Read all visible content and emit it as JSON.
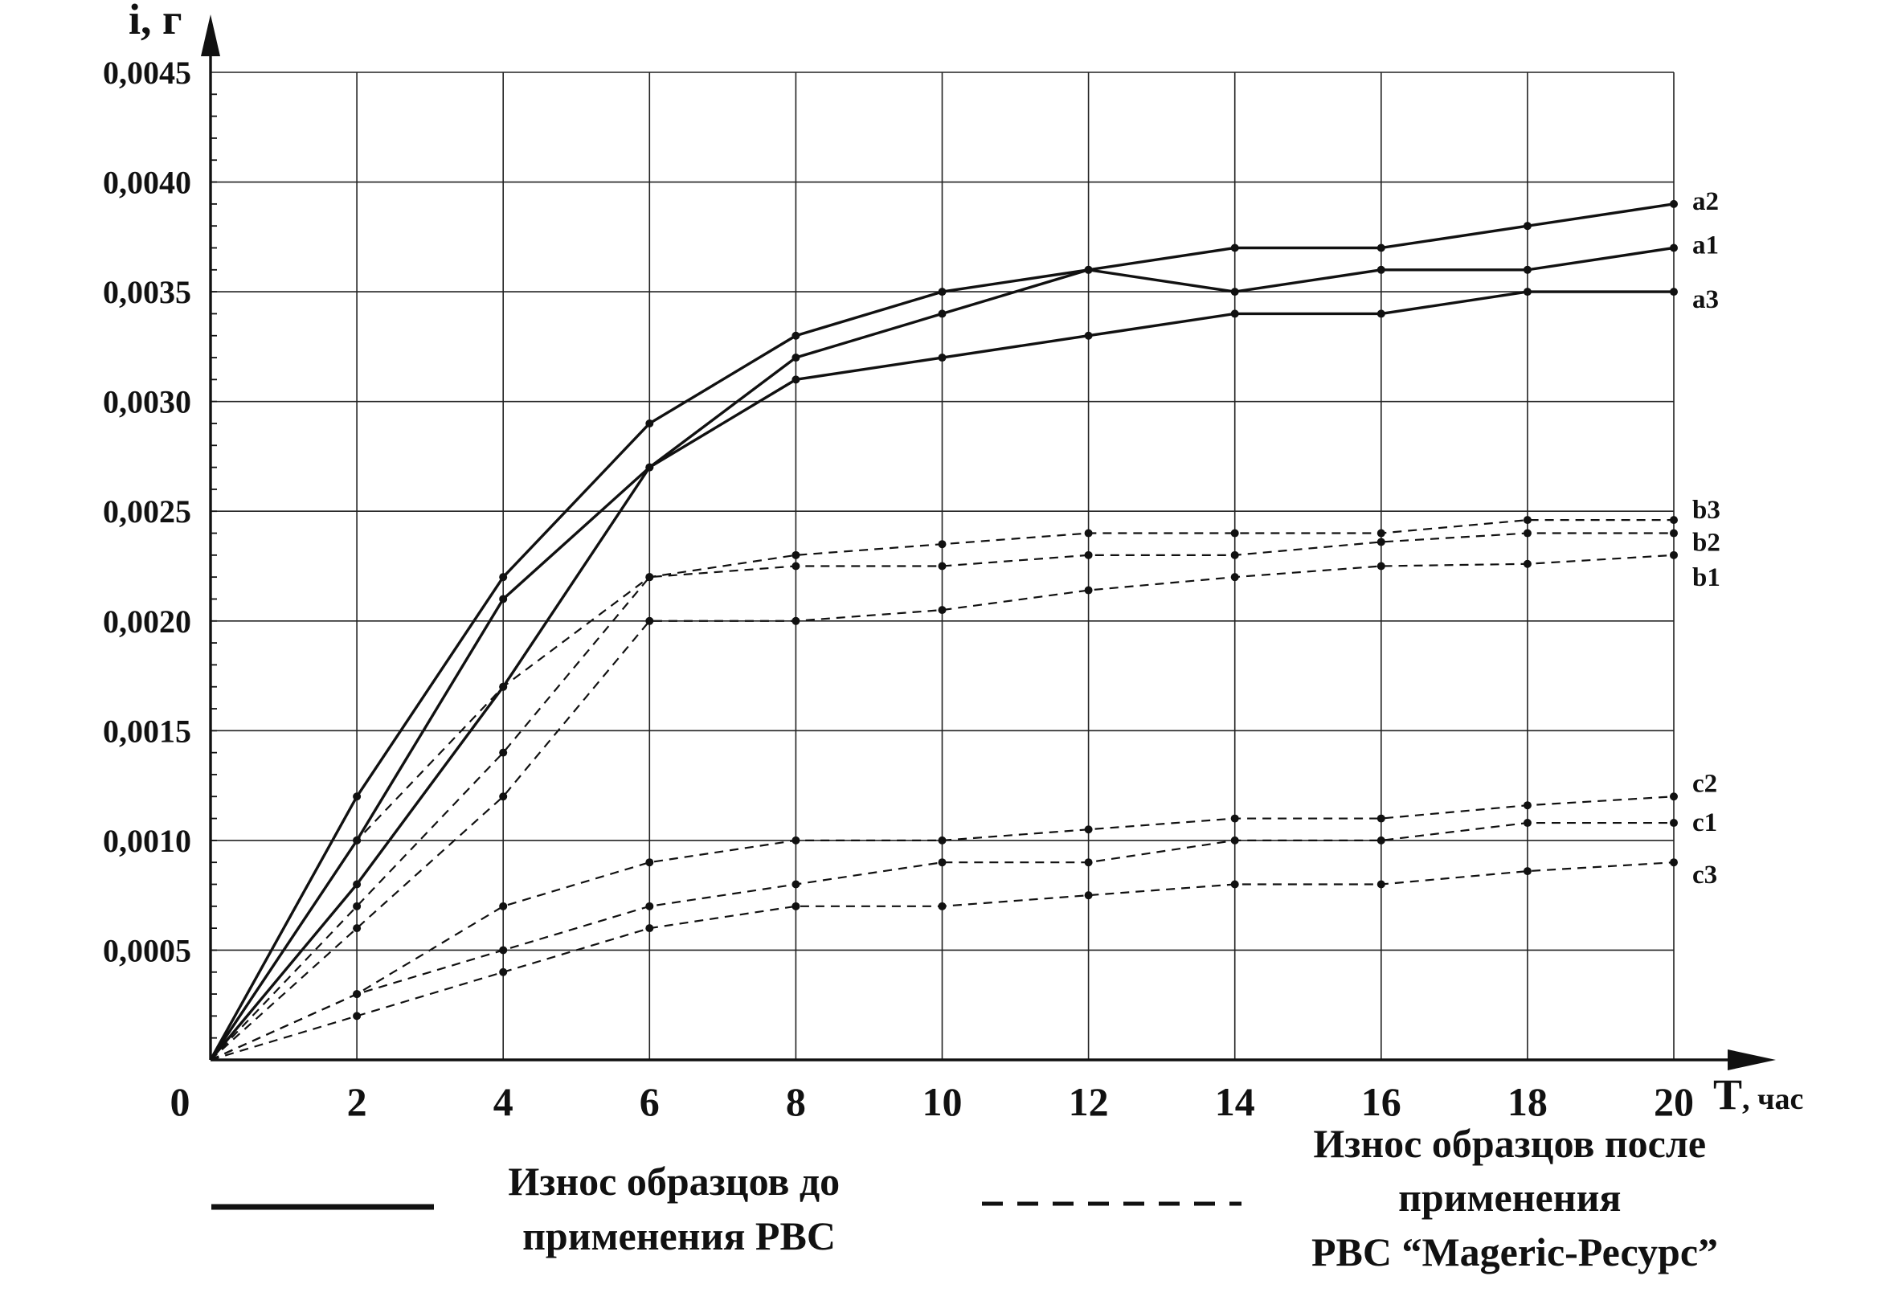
{
  "chart_data": {
    "type": "line",
    "ylabel": "i, г",
    "xlabel": "T",
    "xlabel_unit": ", час",
    "x_origin_label": "0",
    "x": [
      0,
      2,
      4,
      6,
      8,
      10,
      12,
      14,
      16,
      18,
      20
    ],
    "x_tick_labels": [
      "2",
      "4",
      "6",
      "8",
      "10",
      "12",
      "14",
      "16",
      "18",
      "20"
    ],
    "y_tick_labels": [
      "0,0005",
      "0,0010",
      "0,0015",
      "0,0020",
      "0,0025",
      "0,0030",
      "0,0035",
      "0,0040",
      "0,0045"
    ],
    "y_ticks": [
      0.0005,
      0.001,
      0.0015,
      0.002,
      0.0025,
      0.003,
      0.0035,
      0.004,
      0.0045
    ],
    "xlim": [
      0,
      20
    ],
    "ylim": [
      0,
      0.0045
    ],
    "grid": true,
    "series": [
      {
        "name": "a2",
        "style": "solid",
        "values": [
          0,
          0.0012,
          0.0022,
          0.0029,
          0.0033,
          0.0035,
          0.0036,
          0.0037,
          0.0037,
          0.0038,
          0.0039
        ]
      },
      {
        "name": "a1",
        "style": "solid",
        "values": [
          0,
          0.001,
          0.0021,
          0.0027,
          0.0032,
          0.0034,
          0.0036,
          0.0035,
          0.0036,
          0.0036,
          0.0037
        ]
      },
      {
        "name": "a3",
        "style": "solid",
        "values": [
          0,
          0.0008,
          0.0017,
          0.0027,
          0.0031,
          0.0032,
          0.0033,
          0.0034,
          0.0034,
          0.0035,
          0.0035
        ]
      },
      {
        "name": "b3",
        "style": "dashed",
        "values": [
          0,
          0.001,
          0.0017,
          0.0022,
          0.0023,
          0.00235,
          0.0024,
          0.0024,
          0.0024,
          0.00246,
          0.00246
        ]
      },
      {
        "name": "b2",
        "style": "dashed",
        "values": [
          0,
          0.0007,
          0.0014,
          0.0022,
          0.00225,
          0.00225,
          0.0023,
          0.0023,
          0.00236,
          0.0024,
          0.0024
        ]
      },
      {
        "name": "b1",
        "style": "dashed",
        "values": [
          0,
          0.0006,
          0.0012,
          0.002,
          0.002,
          0.00205,
          0.00214,
          0.0022,
          0.00225,
          0.00226,
          0.0023
        ]
      },
      {
        "name": "c2",
        "style": "dashed",
        "values": [
          0,
          0.0003,
          0.0007,
          0.0009,
          0.001,
          0.001,
          0.00105,
          0.0011,
          0.0011,
          0.00116,
          0.0012
        ]
      },
      {
        "name": "c1",
        "style": "dashed",
        "values": [
          0,
          0.0003,
          0.0005,
          0.0007,
          0.0008,
          0.0009,
          0.0009,
          0.001,
          0.001,
          0.00108,
          0.00108
        ]
      },
      {
        "name": "c3",
        "style": "dashed",
        "values": [
          0,
          0.0002,
          0.0004,
          0.0006,
          0.0007,
          0.0007,
          0.00075,
          0.0008,
          0.0008,
          0.00086,
          0.0009
        ]
      }
    ],
    "legend": {
      "solid": [
        "Износ образцов до",
        "применения РВС"
      ],
      "dashed": [
        "Износ образцов после",
        "применения",
        "РВС “Mageric-Ресурс”"
      ]
    }
  }
}
